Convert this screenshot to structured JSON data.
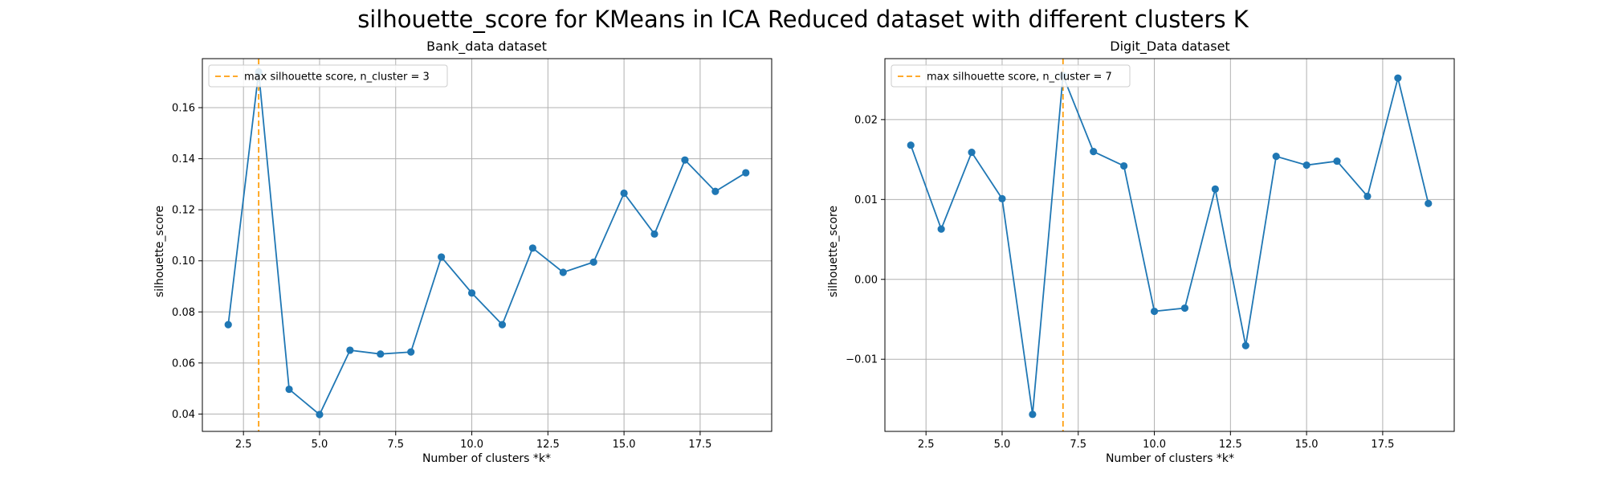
{
  "title": "silhouette_score for KMeans in ICA Reduced dataset with different clusters K",
  "chart_data": [
    {
      "type": "line",
      "title": "Bank_data dataset",
      "xlabel": "Number of clusters *k*",
      "ylabel": "silhouette_score",
      "x": [
        2,
        3,
        4,
        5,
        6,
        7,
        8,
        9,
        10,
        11,
        12,
        13,
        14,
        15,
        16,
        17,
        18,
        19
      ],
      "series": [
        {
          "values": [
            0.075,
            0.174,
            0.0497,
            0.0398,
            0.065,
            0.0635,
            0.0643,
            0.1015,
            0.0874,
            0.075,
            0.105,
            0.0955,
            0.0995,
            0.1265,
            0.1105,
            0.1395,
            0.1272,
            0.1345
          ]
        }
      ],
      "vline_x": 3,
      "legend": [
        "max silhouette score, n_cluster = 3"
      ],
      "legend_loc": "upper left",
      "xlim": [
        1.15,
        19.85
      ],
      "ylim": [
        0.0332,
        0.1792
      ],
      "xticks": [
        2.5,
        5.0,
        7.5,
        10.0,
        12.5,
        15.0,
        17.5
      ],
      "xtick_labels": [
        "2.5",
        "5.0",
        "7.5",
        "10.0",
        "12.5",
        "15.0",
        "17.5"
      ],
      "yticks": [
        0.04,
        0.06,
        0.08,
        0.1,
        0.12,
        0.14,
        0.16
      ],
      "ytick_labels": [
        "0.04",
        "0.06",
        "0.08",
        "0.10",
        "0.12",
        "0.14",
        "0.16"
      ],
      "grid": true,
      "colors": {
        "line": "#1f77b4",
        "vline": "#ff9f0e"
      }
    },
    {
      "type": "line",
      "title": "Digit_Data dataset",
      "xlabel": "Number of clusters *k*",
      "ylabel": "silhouette_score",
      "x": [
        2,
        3,
        4,
        5,
        6,
        7,
        8,
        9,
        10,
        11,
        12,
        13,
        14,
        15,
        16,
        17,
        18,
        19
      ],
      "series": [
        {
          "values": [
            0.0168,
            0.0063,
            0.0159,
            0.0101,
            -0.0169,
            0.0255,
            0.016,
            0.0142,
            -0.004,
            -0.0036,
            0.0113,
            -0.0083,
            0.0154,
            0.0143,
            0.0148,
            0.0104,
            0.0252,
            0.0095
          ]
        }
      ],
      "vline_x": 7,
      "legend": [
        "max silhouette score, n_cluster = 7"
      ],
      "legend_loc": "upper left",
      "xlim": [
        1.15,
        19.85
      ],
      "ylim": [
        -0.01903,
        0.02763
      ],
      "xticks": [
        2.5,
        5.0,
        7.5,
        10.0,
        12.5,
        15.0,
        17.5
      ],
      "xtick_labels": [
        "2.5",
        "5.0",
        "7.5",
        "10.0",
        "12.5",
        "15.0",
        "17.5"
      ],
      "yticks": [
        -0.01,
        0.0,
        0.01,
        0.02
      ],
      "ytick_labels": [
        "−0.01",
        "0.00",
        "0.01",
        "0.02"
      ],
      "grid": true,
      "colors": {
        "line": "#1f77b4",
        "vline": "#ff9f0e"
      }
    }
  ]
}
